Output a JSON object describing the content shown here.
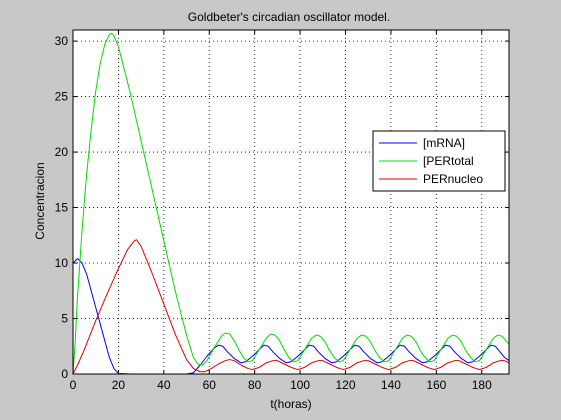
{
  "figure": {
    "background": "#c8c8c8"
  },
  "chart_data": {
    "type": "line",
    "title": "Goldbeter's circadian oscillator model.",
    "xlabel": "t(horas)",
    "ylabel": "Concentracion",
    "xlim": [
      0,
      192
    ],
    "ylim": [
      0,
      31
    ],
    "xticks": [
      0,
      20,
      40,
      60,
      80,
      100,
      120,
      140,
      160,
      180
    ],
    "yticks": [
      0,
      5,
      10,
      15,
      20,
      25,
      30
    ],
    "grid": true,
    "legend_position": "right",
    "series": [
      {
        "name": "[mRNA]",
        "color": "#0000ff",
        "points": [
          [
            0,
            10.0
          ],
          [
            2,
            10.4
          ],
          [
            4,
            10.0
          ],
          [
            6,
            9.0
          ],
          [
            8,
            7.5
          ],
          [
            10,
            6.0
          ],
          [
            12,
            4.5
          ],
          [
            14,
            3.0
          ],
          [
            16,
            1.5
          ],
          [
            18,
            0.5
          ],
          [
            20,
            0.05
          ],
          [
            25,
            0.0
          ],
          [
            30,
            0.0
          ],
          [
            35,
            0.0
          ],
          [
            40,
            0.0
          ],
          [
            45,
            0.0
          ],
          [
            50,
            0.0
          ],
          [
            53,
            0.1
          ],
          [
            56,
            0.8
          ],
          [
            59,
            1.6
          ],
          [
            62,
            2.3
          ],
          [
            64,
            2.6
          ],
          [
            66,
            2.5
          ],
          [
            68,
            2.0
          ],
          [
            71,
            1.4
          ],
          [
            74,
            1.0
          ],
          [
            76,
            1.1
          ],
          [
            79,
            1.6
          ],
          [
            82,
            2.2
          ],
          [
            84,
            2.6
          ],
          [
            86,
            2.5
          ],
          [
            88,
            2.0
          ],
          [
            91,
            1.4
          ],
          [
            94,
            1.0
          ],
          [
            96,
            1.1
          ],
          [
            99,
            1.6
          ],
          [
            102,
            2.2
          ],
          [
            104,
            2.6
          ],
          [
            106,
            2.5
          ],
          [
            108,
            2.0
          ],
          [
            111,
            1.4
          ],
          [
            114,
            1.0
          ],
          [
            116,
            1.1
          ],
          [
            119,
            1.6
          ],
          [
            122,
            2.2
          ],
          [
            124,
            2.6
          ],
          [
            126,
            2.5
          ],
          [
            128,
            2.0
          ],
          [
            131,
            1.4
          ],
          [
            134,
            1.0
          ],
          [
            136,
            1.1
          ],
          [
            139,
            1.6
          ],
          [
            142,
            2.2
          ],
          [
            144,
            2.6
          ],
          [
            146,
            2.5
          ],
          [
            148,
            2.0
          ],
          [
            151,
            1.4
          ],
          [
            154,
            1.0
          ],
          [
            156,
            1.1
          ],
          [
            159,
            1.6
          ],
          [
            162,
            2.2
          ],
          [
            164,
            2.6
          ],
          [
            166,
            2.5
          ],
          [
            168,
            2.0
          ],
          [
            171,
            1.4
          ],
          [
            174,
            1.0
          ],
          [
            176,
            1.1
          ],
          [
            179,
            1.6
          ],
          [
            182,
            2.2
          ],
          [
            184,
            2.6
          ],
          [
            186,
            2.5
          ],
          [
            188,
            2.0
          ],
          [
            190,
            1.5
          ],
          [
            192,
            1.2
          ]
        ]
      },
      {
        "name": "[PERtotal",
        "color": "#00dd00",
        "points": [
          [
            0,
            0.0
          ],
          [
            1,
            3.0
          ],
          [
            2,
            7.0
          ],
          [
            4,
            13.0
          ],
          [
            6,
            18.0
          ],
          [
            8,
            22.0
          ],
          [
            10,
            25.5
          ],
          [
            12,
            28.0
          ],
          [
            14,
            29.7
          ],
          [
            16,
            30.6
          ],
          [
            17,
            30.7
          ],
          [
            18,
            30.5
          ],
          [
            20,
            29.5
          ],
          [
            25,
            25.5
          ],
          [
            30,
            21.0
          ],
          [
            35,
            16.5
          ],
          [
            40,
            12.0
          ],
          [
            45,
            7.5
          ],
          [
            50,
            3.5
          ],
          [
            53,
            1.5
          ],
          [
            55,
            0.9
          ],
          [
            57,
            0.8
          ],
          [
            59,
            1.2
          ],
          [
            62,
            2.3
          ],
          [
            65,
            3.3
          ],
          [
            67,
            3.7
          ],
          [
            69,
            3.6
          ],
          [
            71,
            3.0
          ],
          [
            73,
            2.2
          ],
          [
            75,
            1.5
          ],
          [
            77,
            1.1
          ],
          [
            79,
            1.2
          ],
          [
            82,
            2.2
          ],
          [
            85,
            3.2
          ],
          [
            87,
            3.6
          ],
          [
            89,
            3.5
          ],
          [
            91,
            3.0
          ],
          [
            93,
            2.2
          ],
          [
            95,
            1.5
          ],
          [
            97,
            1.1
          ],
          [
            99,
            1.2
          ],
          [
            102,
            2.2
          ],
          [
            105,
            3.2
          ],
          [
            107,
            3.5
          ],
          [
            109,
            3.4
          ],
          [
            111,
            2.9
          ],
          [
            113,
            2.1
          ],
          [
            115,
            1.5
          ],
          [
            117,
            1.1
          ],
          [
            119,
            1.2
          ],
          [
            122,
            2.2
          ],
          [
            125,
            3.2
          ],
          [
            127,
            3.5
          ],
          [
            129,
            3.4
          ],
          [
            131,
            2.9
          ],
          [
            133,
            2.1
          ],
          [
            135,
            1.5
          ],
          [
            137,
            1.1
          ],
          [
            139,
            1.2
          ],
          [
            142,
            2.2
          ],
          [
            145,
            3.2
          ],
          [
            147,
            3.5
          ],
          [
            149,
            3.4
          ],
          [
            151,
            2.9
          ],
          [
            153,
            2.1
          ],
          [
            155,
            1.5
          ],
          [
            157,
            1.1
          ],
          [
            159,
            1.2
          ],
          [
            162,
            2.2
          ],
          [
            165,
            3.2
          ],
          [
            167,
            3.5
          ],
          [
            169,
            3.4
          ],
          [
            171,
            2.9
          ],
          [
            173,
            2.1
          ],
          [
            175,
            1.5
          ],
          [
            177,
            1.1
          ],
          [
            179,
            1.2
          ],
          [
            182,
            2.2
          ],
          [
            185,
            3.2
          ],
          [
            187,
            3.5
          ],
          [
            189,
            3.4
          ],
          [
            191,
            2.9
          ],
          [
            192,
            2.7
          ]
        ]
      },
      {
        "name": "PERnucleo",
        "color": "#dd0000",
        "points": [
          [
            0,
            0.0
          ],
          [
            2,
            0.8
          ],
          [
            5,
            2.2
          ],
          [
            10,
            4.8
          ],
          [
            15,
            7.2
          ],
          [
            20,
            9.5
          ],
          [
            24,
            11.2
          ],
          [
            27,
            12.0
          ],
          [
            28,
            12.1
          ],
          [
            30,
            11.5
          ],
          [
            35,
            9.0
          ],
          [
            40,
            6.3
          ],
          [
            45,
            3.6
          ],
          [
            50,
            1.3
          ],
          [
            53,
            0.5
          ],
          [
            56,
            0.2
          ],
          [
            58,
            0.2
          ],
          [
            61,
            0.5
          ],
          [
            64,
            0.9
          ],
          [
            67,
            1.2
          ],
          [
            69,
            1.3
          ],
          [
            71,
            1.2
          ],
          [
            74,
            0.8
          ],
          [
            77,
            0.5
          ],
          [
            79,
            0.4
          ],
          [
            82,
            0.6
          ],
          [
            85,
            1.0
          ],
          [
            88,
            1.2
          ],
          [
            90,
            1.2
          ],
          [
            93,
            0.9
          ],
          [
            96,
            0.6
          ],
          [
            99,
            0.4
          ],
          [
            102,
            0.6
          ],
          [
            105,
            1.0
          ],
          [
            108,
            1.2
          ],
          [
            110,
            1.2
          ],
          [
            113,
            0.9
          ],
          [
            116,
            0.6
          ],
          [
            119,
            0.4
          ],
          [
            122,
            0.6
          ],
          [
            125,
            1.0
          ],
          [
            128,
            1.2
          ],
          [
            130,
            1.2
          ],
          [
            133,
            0.9
          ],
          [
            136,
            0.6
          ],
          [
            139,
            0.4
          ],
          [
            142,
            0.6
          ],
          [
            145,
            1.0
          ],
          [
            148,
            1.2
          ],
          [
            150,
            1.2
          ],
          [
            153,
            0.9
          ],
          [
            156,
            0.6
          ],
          [
            159,
            0.4
          ],
          [
            162,
            0.6
          ],
          [
            165,
            1.0
          ],
          [
            168,
            1.2
          ],
          [
            170,
            1.2
          ],
          [
            173,
            0.9
          ],
          [
            176,
            0.6
          ],
          [
            179,
            0.4
          ],
          [
            182,
            0.6
          ],
          [
            185,
            1.0
          ],
          [
            188,
            1.2
          ],
          [
            190,
            1.2
          ],
          [
            192,
            1.0
          ]
        ]
      }
    ]
  }
}
